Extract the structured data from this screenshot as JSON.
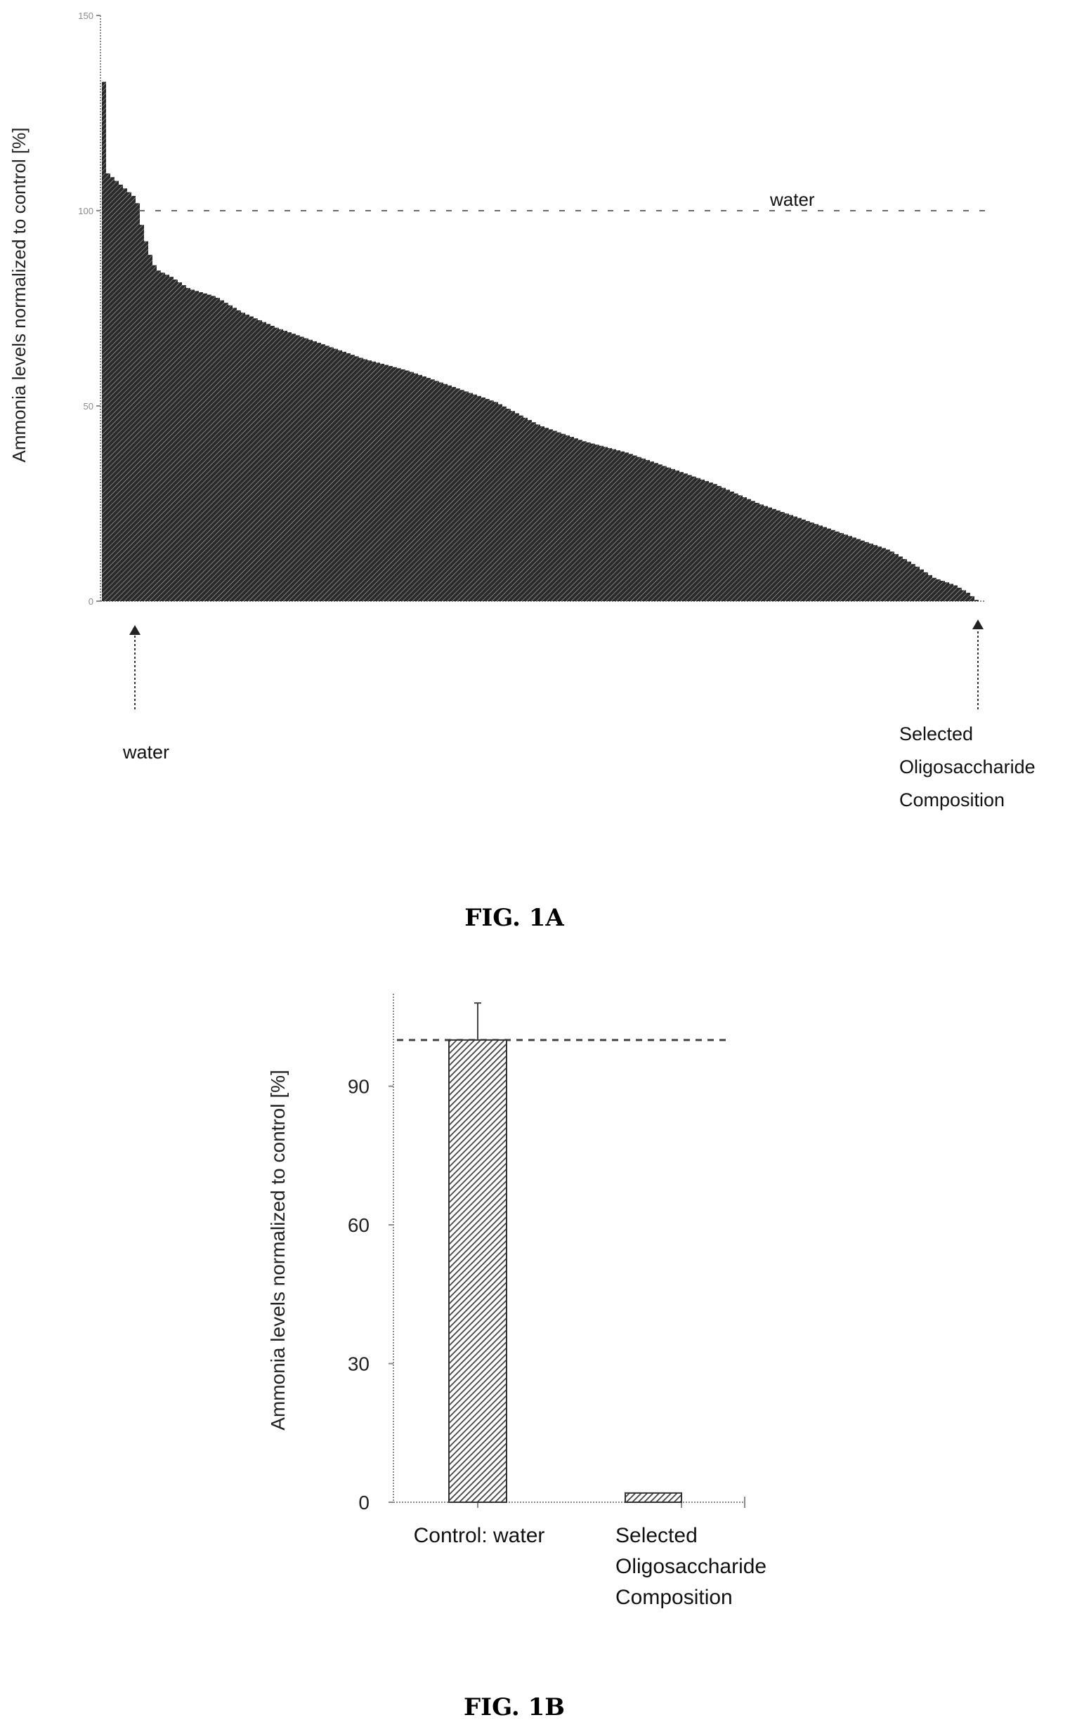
{
  "chart_data": [
    {
      "type": "bar",
      "panel": "FIG. 1A",
      "title": "",
      "xlabel": "",
      "ylabel": "Ammonia levels normalized to control [%]",
      "ylim": [
        0,
        150
      ],
      "yticks": [
        "0",
        "50",
        "100",
        "150"
      ],
      "reference_line": {
        "label": "water",
        "value": 100,
        "style": "dashed"
      },
      "profile": [
        [
          0,
          133
        ],
        [
          0.4,
          133
        ],
        [
          0.5,
          110
        ],
        [
          1.5,
          108
        ],
        [
          3,
          105
        ],
        [
          4,
          103
        ],
        [
          4.5,
          97
        ],
        [
          5.3,
          90
        ],
        [
          6.2,
          85
        ],
        [
          8,
          83
        ],
        [
          10,
          80
        ],
        [
          13,
          78
        ],
        [
          16,
          74
        ],
        [
          20,
          70
        ],
        [
          25,
          66
        ],
        [
          30,
          62
        ],
        [
          35,
          59
        ],
        [
          40,
          55
        ],
        [
          45,
          51
        ],
        [
          50,
          45
        ],
        [
          55,
          41
        ],
        [
          60,
          38
        ],
        [
          65,
          34
        ],
        [
          70,
          30
        ],
        [
          75,
          25
        ],
        [
          80,
          21
        ],
        [
          85,
          17
        ],
        [
          90,
          13
        ],
        [
          93,
          9
        ],
        [
          95,
          6
        ],
        [
          97.5,
          4
        ],
        [
          99,
          2
        ],
        [
          100,
          0
        ]
      ],
      "annotations": [
        {
          "text": "water",
          "position": "first bar",
          "arrow": "up"
        },
        {
          "text": "Selected Oligosaccharide Composition",
          "lines": [
            "Selected",
            "Oligosaccharide",
            "Composition"
          ],
          "position": "last bar",
          "arrow": "up"
        }
      ]
    },
    {
      "type": "bar",
      "panel": "FIG. 1B",
      "title": "",
      "xlabel": "",
      "ylabel": "Ammonia levels normalized to control [%]",
      "ylim": [
        0,
        110
      ],
      "yticks": [
        0,
        30,
        60,
        90
      ],
      "reference_line": {
        "value": 100,
        "style": "dashed"
      },
      "categories": [
        "Control: water",
        "Selected Oligosaccharide Composition"
      ],
      "category_lines": [
        [
          "Control: water"
        ],
        [
          "Selected",
          "Oligosaccharide",
          "Composition"
        ]
      ],
      "values": [
        100,
        2
      ],
      "error_bars": [
        8,
        null
      ]
    }
  ],
  "figure_labels": {
    "a": "FIG. 1A",
    "b": "FIG. 1B"
  },
  "colors": {
    "bar_fill": "#2b2b2b",
    "bar_hatch": "#d8d8d8",
    "axis": "#8a8a8a",
    "text": "#111111",
    "figure_label": "#000000"
  }
}
